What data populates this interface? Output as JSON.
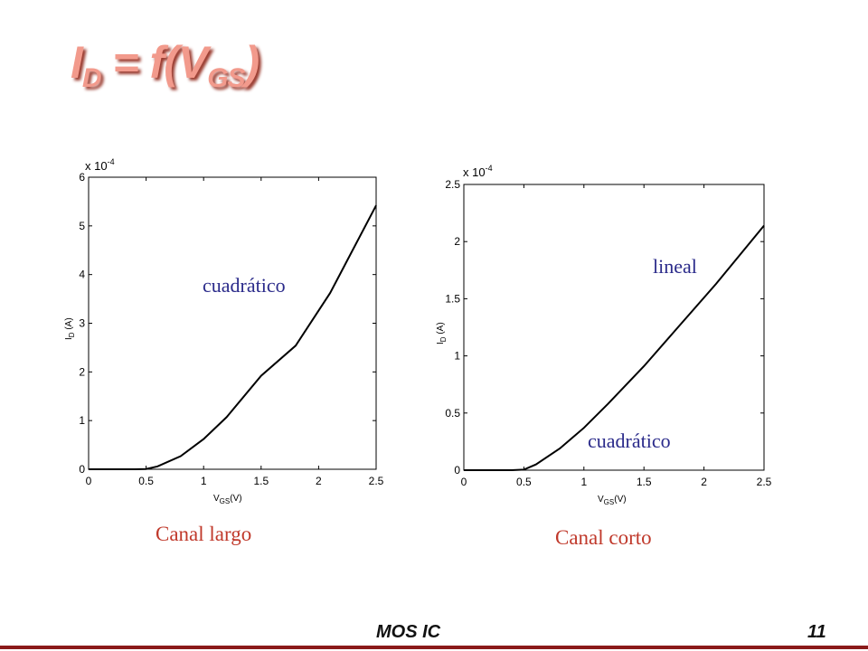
{
  "slide": {
    "title": {
      "main": "I",
      "sub1": "D",
      "middle": " = f(V",
      "sub2": "GS",
      "end": ")"
    },
    "footer_left": "MOS IC",
    "footer_right": "11"
  },
  "chart_data": [
    {
      "type": "line",
      "caption": "Canal largo",
      "annotation": "cuadrático",
      "xlabel": {
        "main": "V",
        "sub": "GS",
        "rest": "(V)"
      },
      "ylabel": {
        "main": "I",
        "sub": "D",
        "rest": " (A)"
      },
      "multiplier": {
        "base": "x 10",
        "exp": "-4"
      },
      "xlim": [
        0,
        2.5
      ],
      "ylim": [
        0,
        6
      ],
      "xticks": [
        0,
        0.5,
        1,
        1.5,
        2,
        2.5
      ],
      "xtick_labels": [
        "0",
        "0.5",
        "1",
        "1.5",
        "2",
        "2.5"
      ],
      "yticks": [
        0,
        1,
        2,
        3,
        4,
        5,
        6
      ],
      "ytick_labels": [
        "0",
        "1",
        "2",
        "3",
        "4",
        "5",
        "6"
      ],
      "series": [
        {
          "x": [
            0,
            0.3,
            0.4,
            0.5,
            0.6,
            0.8,
            1.0,
            1.2,
            1.5,
            1.8,
            2.1,
            2.5
          ],
          "y": [
            0,
            0,
            0,
            0.005,
            0.06,
            0.27,
            0.62,
            1.07,
            1.92,
            2.54,
            3.62,
            5.42
          ]
        }
      ]
    },
    {
      "type": "line",
      "caption": "Canal corto",
      "annotations": [
        "lineal",
        "cuadrático"
      ],
      "xlabel": {
        "main": "V",
        "sub": "GS",
        "rest": "(V)"
      },
      "ylabel": {
        "main": "I",
        "sub": "D",
        "rest": " (A)"
      },
      "multiplier": {
        "base": "x 10",
        "exp": "-4"
      },
      "xlim": [
        0,
        2.5
      ],
      "ylim": [
        0,
        2.5
      ],
      "xticks": [
        0,
        0.5,
        1,
        1.5,
        2,
        2.5
      ],
      "xtick_labels": [
        "0",
        "0.5",
        "1",
        "1.5",
        "2",
        "2.5"
      ],
      "yticks": [
        0,
        0.5,
        1,
        1.5,
        2,
        2.5
      ],
      "ytick_labels": [
        "0",
        "0.5",
        "1",
        "1.5",
        "2",
        "2.5"
      ],
      "series": [
        {
          "x": [
            0,
            0.3,
            0.4,
            0.5,
            0.6,
            0.8,
            1.0,
            1.2,
            1.5,
            1.8,
            2.1,
            2.5
          ],
          "y": [
            0,
            0,
            0,
            0.005,
            0.05,
            0.19,
            0.37,
            0.58,
            0.91,
            1.27,
            1.63,
            2.14
          ]
        }
      ]
    }
  ]
}
